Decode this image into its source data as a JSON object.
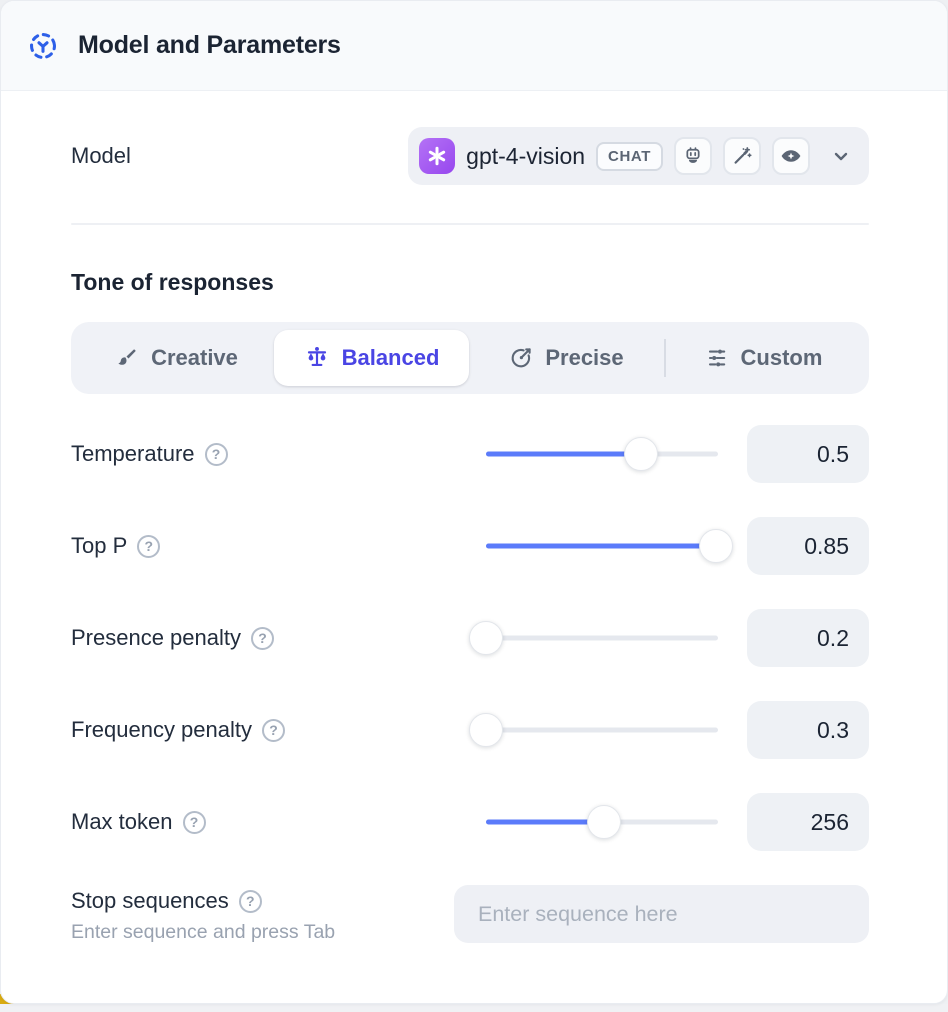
{
  "header": {
    "title": "Model and Parameters",
    "icon": "model-hub-icon"
  },
  "model_row": {
    "label": "Model",
    "selector": {
      "provider_icon": "openai-logo",
      "model_name": "gpt-4-vision",
      "type_badge": "CHAT",
      "capability_icons": [
        "robot-icon",
        "wand-sparkles-icon",
        "vision-eye-icon"
      ],
      "chevron": "chevron-down-icon"
    }
  },
  "tone": {
    "heading": "Tone of responses",
    "tabs": [
      {
        "label": "Creative",
        "icon": "paintbrush-icon",
        "active": false
      },
      {
        "label": "Balanced",
        "icon": "balance-scale-icon",
        "active": true
      },
      {
        "label": "Precise",
        "icon": "target-icon",
        "active": false
      },
      {
        "label": "Custom",
        "icon": "sliders-icon",
        "active": false
      }
    ]
  },
  "parameters": [
    {
      "label": "Temperature",
      "value": "0.5",
      "percent": 67
    },
    {
      "label": "Top P",
      "value": "0.85",
      "percent": 99
    },
    {
      "label": "Presence penalty",
      "value": "0.2",
      "percent": 0
    },
    {
      "label": "Frequency penalty",
      "value": "0.3",
      "percent": 0
    },
    {
      "label": "Max token",
      "value": "256",
      "percent": 51
    }
  ],
  "stop_sequences": {
    "label": "Stop sequences",
    "helper": "Enter sequence and press Tab",
    "placeholder": "Enter sequence here"
  },
  "colors": {
    "accent_blue": "#5b7bfa",
    "accent_indigo": "#4a45e4",
    "header_icon_blue": "#2d5fe8",
    "provider_purple": "#9d52f0",
    "control_bg": "#eef0f5",
    "header_bg": "#f8fafc",
    "text_dark": "#1b2433",
    "text_gray": "#5d6776",
    "peek_yellow": "#d9ab12"
  }
}
